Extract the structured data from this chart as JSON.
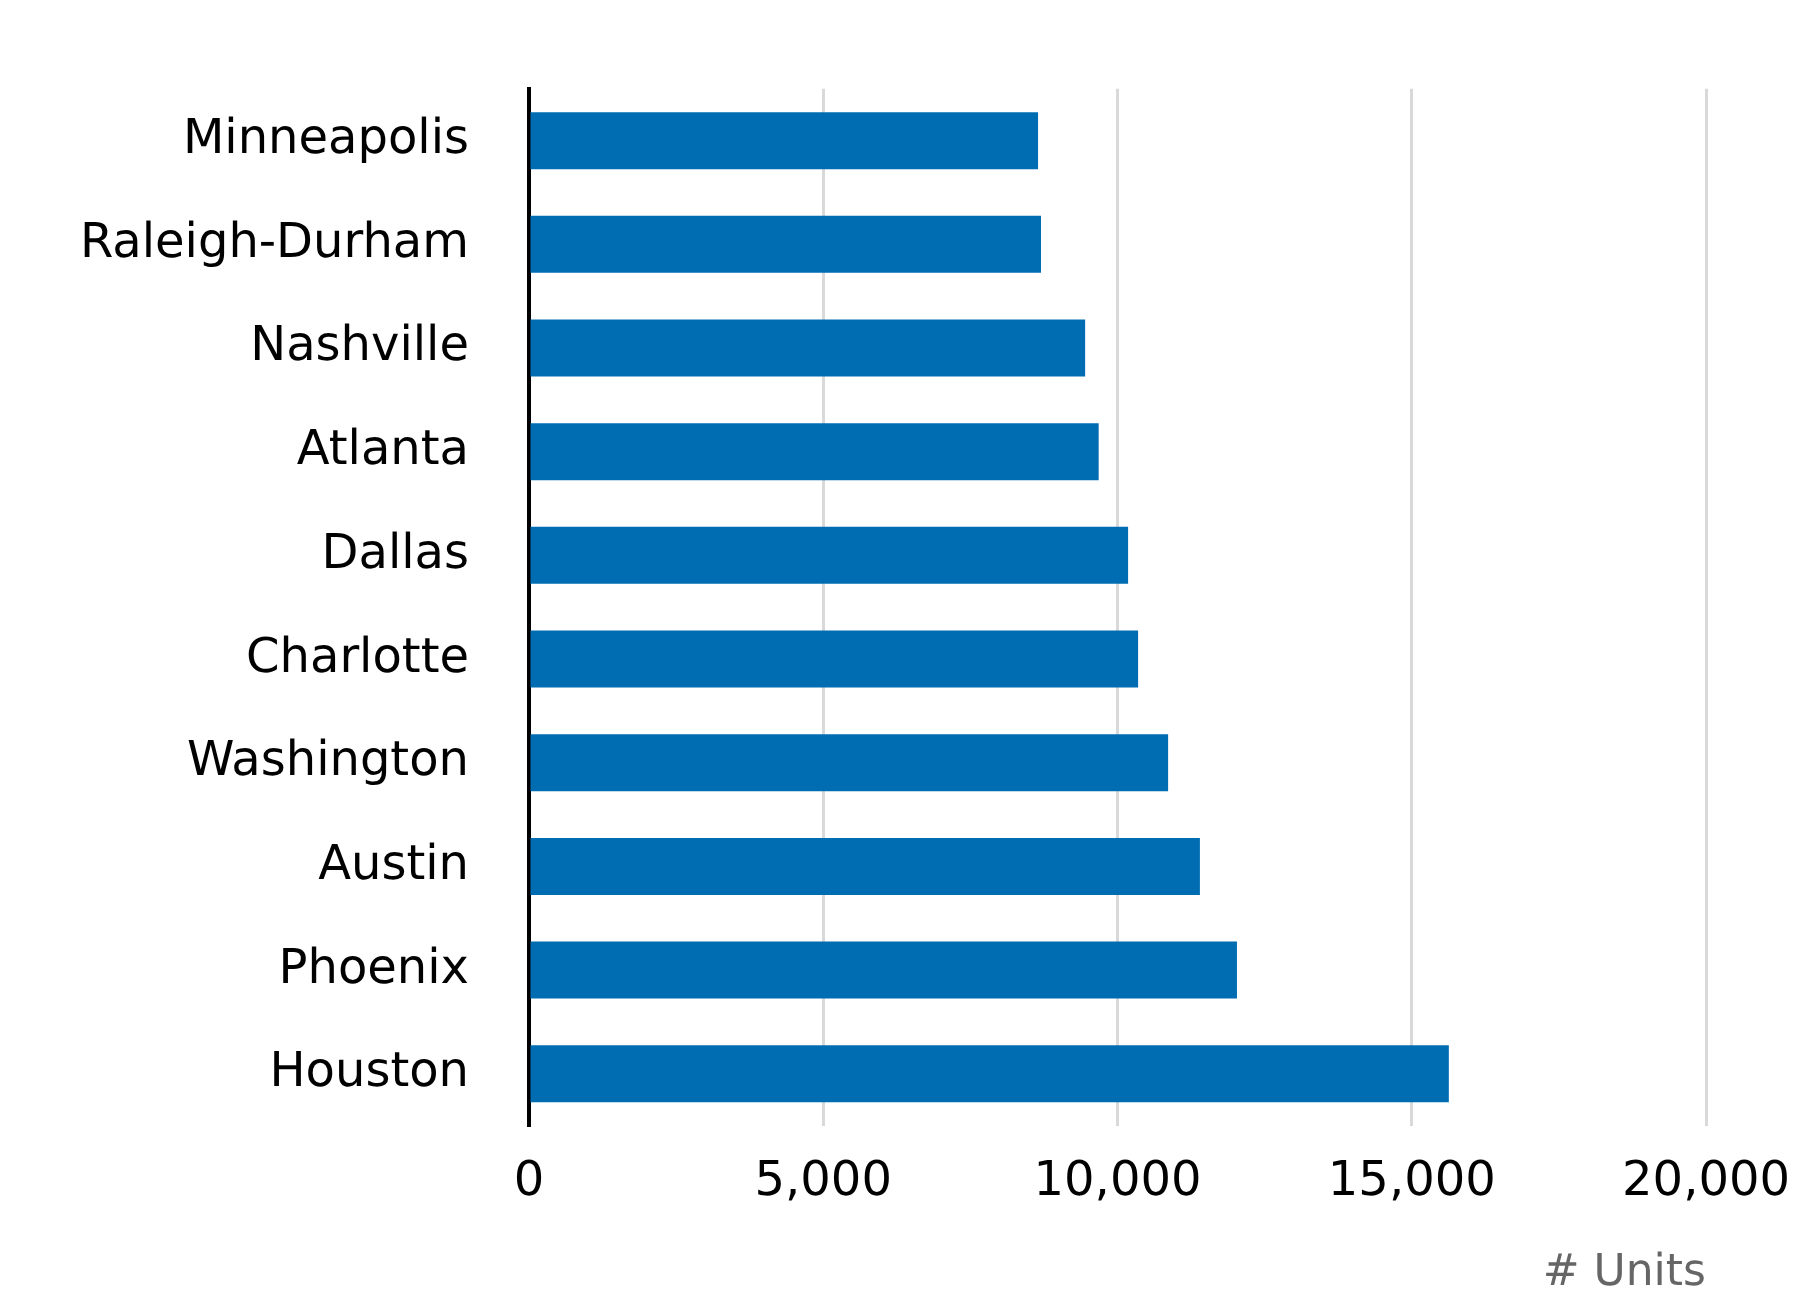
{
  "chart_data": {
    "type": "bar",
    "orientation": "horizontal",
    "xlabel": "# Units",
    "categories": [
      "Minneapolis",
      "Raleigh-Durham",
      "Nashville",
      "Atlanta",
      "Dallas",
      "Charlotte",
      "Washington",
      "Austin",
      "Phoenix",
      "Houston"
    ],
    "values": [
      8650,
      8700,
      9450,
      9680,
      10180,
      10350,
      10860,
      11400,
      12030,
      15630
    ],
    "color": "#006db3",
    "xlim": [
      0,
      20000
    ],
    "xticks": [
      0,
      {
        "value": 5000,
        "label": "5,000"
      },
      {
        "value": 10000,
        "label": "10,000"
      },
      {
        "value": 15000,
        "label": "15,000"
      },
      {
        "value": 20000,
        "label": "20,000"
      }
    ],
    "grid": "x",
    "legend": false
  }
}
